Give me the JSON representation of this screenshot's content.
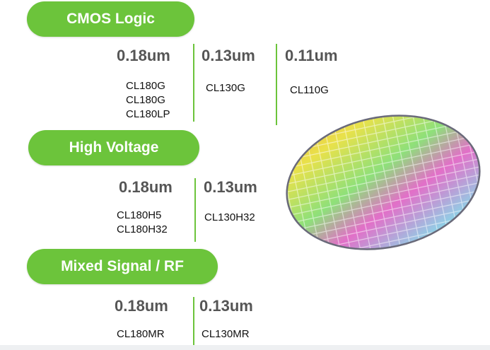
{
  "sections": [
    {
      "title": "CMOS Logic",
      "columns": [
        {
          "node": "0.18um",
          "processes": [
            "CL180G",
            "CL180G",
            "CL180LP"
          ]
        },
        {
          "node": "0.13um",
          "processes": [
            "CL130G"
          ]
        },
        {
          "node": "0.11um",
          "processes": [
            "CL110G"
          ]
        }
      ]
    },
    {
      "title": "High Voltage",
      "columns": [
        {
          "node": "0.18um",
          "processes": [
            "CL180H5",
            "CL180H32"
          ]
        },
        {
          "node": "0.13um",
          "processes": [
            "CL130H32"
          ]
        }
      ]
    },
    {
      "title": "Mixed Signal / RF",
      "columns": [
        {
          "node": "0.18um",
          "processes": [
            "CL180MR"
          ]
        },
        {
          "node": "0.13um",
          "processes": [
            "CL130MR"
          ]
        }
      ]
    }
  ]
}
